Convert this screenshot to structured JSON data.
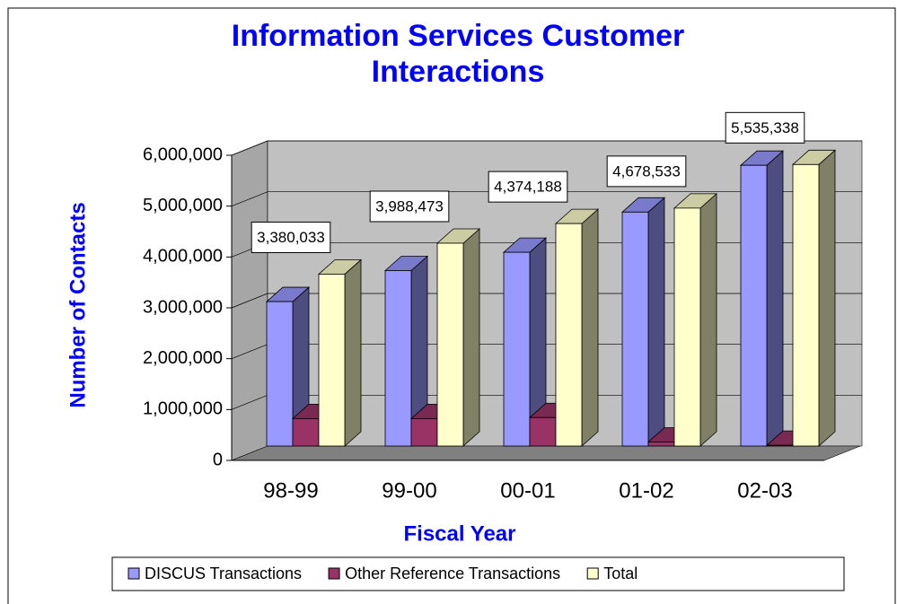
{
  "chart_data": {
    "type": "bar3d",
    "title": "Information Services Customer Interactions",
    "x_label": "Fiscal Year",
    "y_label": "Number of Contacts",
    "categories": [
      "98-99",
      "99-00",
      "00-01",
      "01-02",
      "02-03"
    ],
    "series": [
      {
        "name": "DISCUS Transactions",
        "color": "#9999ff",
        "values": [
          2840000,
          3450000,
          3810000,
          4600000,
          5520000
        ]
      },
      {
        "name": "Other Reference Transactions",
        "color": "#993366",
        "values": [
          540000,
          540000,
          560000,
          80000,
          15000
        ]
      },
      {
        "name": "Total",
        "color": "#ffffcc",
        "values": [
          3380033,
          3988473,
          4374188,
          4678533,
          5535338
        ],
        "value_labels": [
          "3,380,033",
          "3,988,473",
          "4,374,188",
          "4,678,533",
          "5,535,338"
        ]
      }
    ],
    "ylim": [
      0,
      6000000
    ],
    "yticks": [
      0,
      {
        "value": 1000000,
        "label": "1,000,000"
      },
      {
        "value": 2000000,
        "label": "2,000,000"
      },
      {
        "value": 3000000,
        "label": "3,000,000"
      },
      {
        "value": 4000000,
        "label": "4,000,000"
      },
      {
        "value": 5000000,
        "label": "5,000,000"
      },
      {
        "value": 6000000,
        "label": "6,000,000"
      }
    ],
    "grid": true,
    "legend": "bottom"
  }
}
